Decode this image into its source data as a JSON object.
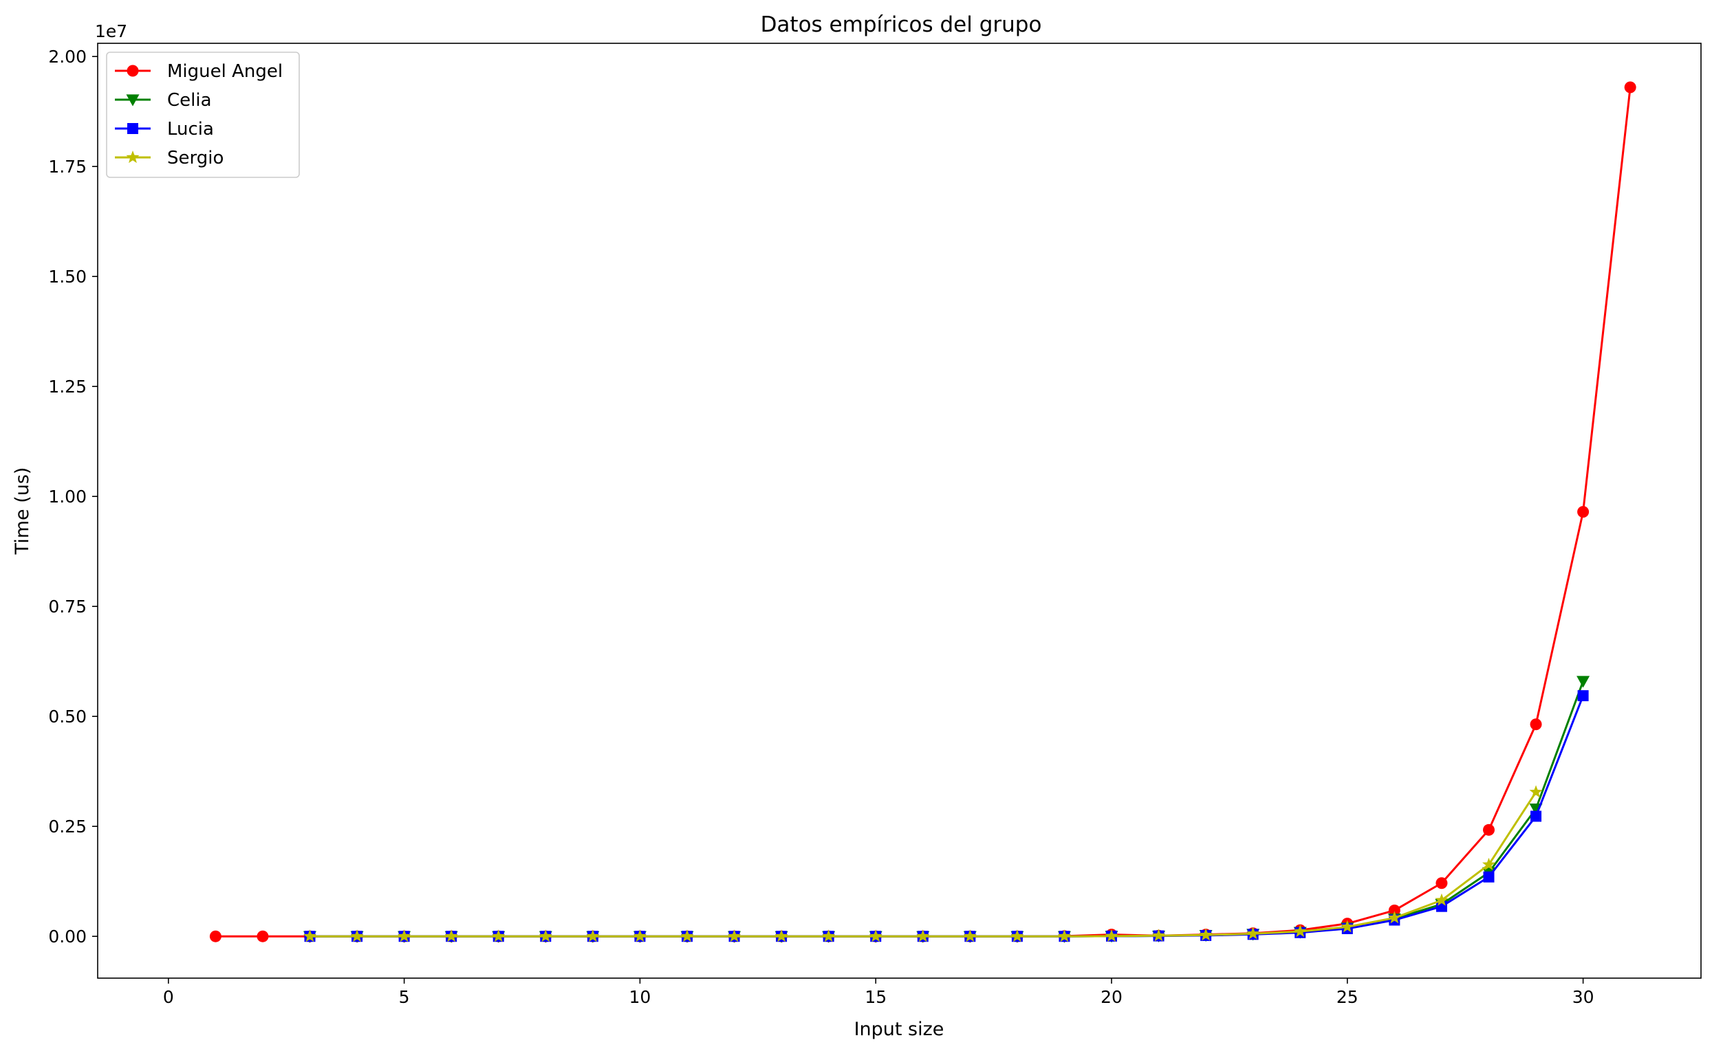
{
  "chart_data": {
    "type": "line",
    "title": "Datos empíricos del grupo",
    "xlabel": "Input size",
    "ylabel": "Time (us)",
    "y_offset_text": "1e7",
    "xlim": [
      -1.5,
      32.5
    ],
    "ylim": [
      -950000,
      20300000
    ],
    "x_ticks": [
      0,
      5,
      10,
      15,
      20,
      25,
      30
    ],
    "x_tick_labels": [
      "0",
      "5",
      "10",
      "15",
      "20",
      "25",
      "30"
    ],
    "y_ticks": [
      0,
      2500000,
      5000000,
      7500000,
      10000000,
      12500000,
      15000000,
      17500000,
      20000000
    ],
    "y_tick_labels": [
      "0.00",
      "0.25",
      "0.50",
      "0.75",
      "1.00",
      "1.25",
      "1.50",
      "1.75",
      "2.00"
    ],
    "grid": false,
    "legend_position": "upper-left",
    "series": [
      {
        "name": "Miguel Angel",
        "color": "#ff0000",
        "marker": "circle",
        "x": [
          1,
          2,
          3,
          4,
          5,
          6,
          7,
          8,
          9,
          10,
          11,
          12,
          13,
          14,
          15,
          16,
          17,
          18,
          19,
          20,
          21,
          22,
          23,
          24,
          25,
          26,
          27,
          28,
          29,
          30,
          31
        ],
        "y": [
          0,
          0,
          0,
          0,
          0,
          0,
          0,
          0,
          0,
          0,
          0,
          0,
          0,
          0,
          0,
          0,
          0,
          0,
          5000,
          40000,
          15000,
          40000,
          70000,
          140000,
          290000,
          590000,
          1210000,
          2420000,
          4820000,
          9650000,
          19300000
        ]
      },
      {
        "name": "Celia",
        "color": "#008000",
        "marker": "triangle-down",
        "x": [
          3,
          4,
          5,
          6,
          7,
          8,
          9,
          10,
          11,
          12,
          13,
          14,
          15,
          16,
          17,
          18,
          19,
          20,
          21,
          22,
          23,
          24,
          25,
          26,
          27,
          28,
          29,
          30
        ],
        "y": [
          0,
          0,
          0,
          0,
          0,
          0,
          0,
          0,
          0,
          0,
          0,
          0,
          0,
          0,
          0,
          0,
          0,
          5000,
          10000,
          25000,
          50000,
          95000,
          195000,
          400000,
          730000,
          1450000,
          2900000,
          5800000
        ]
      },
      {
        "name": "Lucia",
        "color": "#0000ff",
        "marker": "square",
        "x": [
          3,
          4,
          5,
          6,
          7,
          8,
          9,
          10,
          11,
          12,
          13,
          14,
          15,
          16,
          17,
          18,
          19,
          20,
          21,
          22,
          23,
          24,
          25,
          26,
          27,
          28,
          29,
          30
        ],
        "y": [
          0,
          0,
          0,
          0,
          0,
          0,
          0,
          0,
          0,
          0,
          0,
          0,
          0,
          0,
          0,
          0,
          0,
          5000,
          10000,
          20000,
          45000,
          85000,
          175000,
          370000,
          680000,
          1350000,
          2730000,
          5470000
        ]
      },
      {
        "name": "Sergio",
        "color": "#bfbf00",
        "marker": "star",
        "x": [
          3,
          4,
          5,
          6,
          7,
          8,
          9,
          10,
          11,
          12,
          13,
          14,
          15,
          16,
          17,
          18,
          19,
          20,
          21,
          22,
          23,
          24,
          25,
          26,
          27,
          28,
          29
        ],
        "y": [
          0,
          0,
          0,
          0,
          0,
          0,
          0,
          0,
          0,
          0,
          0,
          0,
          0,
          0,
          0,
          0,
          0,
          5000,
          15000,
          30000,
          60000,
          110000,
          215000,
          420000,
          820000,
          1630000,
          3280000
        ]
      }
    ]
  }
}
